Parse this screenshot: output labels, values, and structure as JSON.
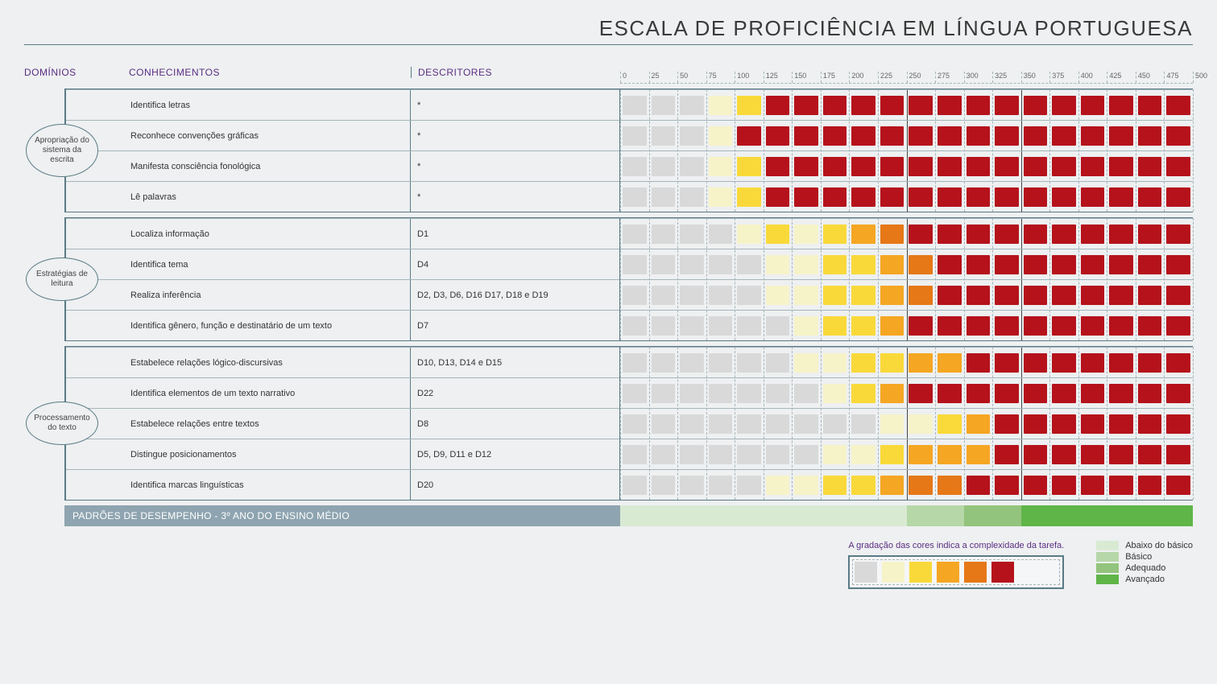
{
  "title": "ESCALA DE PROFICIÊNCIA EM LÍNGUA PORTUGUESA",
  "headers": {
    "domains": "DOMÍNIOS",
    "knowledge": "CONHECIMENTOS",
    "descriptors": "DESCRITORES"
  },
  "scale": {
    "min": 0,
    "max": 500,
    "step": 25
  },
  "colors": {
    "c0": "#d9d9d9",
    "c1": "#f7f3c8",
    "c2": "#f9d93a",
    "c3": "#f5a623",
    "c4": "#e67817",
    "c5": "#b5121b"
  },
  "solid_lines_at": [
    250,
    350
  ],
  "domains": [
    {
      "label": "Apropriação do sistema da escrita",
      "rows": [
        {
          "k": "Identifica letras",
          "d": "*",
          "cells": [
            0,
            0,
            0,
            1,
            2,
            5,
            5,
            5,
            5,
            5,
            5,
            5,
            5,
            5,
            5,
            5,
            5,
            5,
            5,
            5
          ]
        },
        {
          "k": "Reconhece convenções gráficas",
          "d": "*",
          "cells": [
            0,
            0,
            0,
            1,
            5,
            5,
            5,
            5,
            5,
            5,
            5,
            5,
            5,
            5,
            5,
            5,
            5,
            5,
            5,
            5
          ]
        },
        {
          "k": "Manifesta consciência fonológica",
          "d": "*",
          "cells": [
            0,
            0,
            0,
            1,
            2,
            5,
            5,
            5,
            5,
            5,
            5,
            5,
            5,
            5,
            5,
            5,
            5,
            5,
            5,
            5
          ]
        },
        {
          "k": "Lê palavras",
          "d": "*",
          "cells": [
            0,
            0,
            0,
            1,
            2,
            5,
            5,
            5,
            5,
            5,
            5,
            5,
            5,
            5,
            5,
            5,
            5,
            5,
            5,
            5
          ]
        }
      ]
    },
    {
      "label": "Estratégias de leitura",
      "rows": [
        {
          "k": "Localiza informação",
          "d": "D1",
          "cells": [
            0,
            0,
            0,
            0,
            1,
            2,
            1,
            2,
            3,
            4,
            5,
            5,
            5,
            5,
            5,
            5,
            5,
            5,
            5,
            5
          ]
        },
        {
          "k": "Identifica tema",
          "d": "D4",
          "cells": [
            0,
            0,
            0,
            0,
            0,
            1,
            1,
            2,
            2,
            3,
            4,
            5,
            5,
            5,
            5,
            5,
            5,
            5,
            5,
            5
          ]
        },
        {
          "k": "Realiza inferência",
          "d": "D2, D3, D6, D16 D17, D18 e D19",
          "cells": [
            0,
            0,
            0,
            0,
            0,
            1,
            1,
            2,
            2,
            3,
            4,
            5,
            5,
            5,
            5,
            5,
            5,
            5,
            5,
            5
          ]
        },
        {
          "k": "Identifica gênero, função e destinatário de um texto",
          "d": "D7",
          "cells": [
            0,
            0,
            0,
            0,
            0,
            0,
            1,
            2,
            2,
            3,
            5,
            5,
            5,
            5,
            5,
            5,
            5,
            5,
            5,
            5
          ]
        }
      ]
    },
    {
      "label": "Processamento do texto",
      "rows": [
        {
          "k": "Estabelece relações lógico-discursivas",
          "d": "D10, D13, D14 e D15",
          "cells": [
            0,
            0,
            0,
            0,
            0,
            0,
            1,
            1,
            2,
            2,
            3,
            3,
            5,
            5,
            5,
            5,
            5,
            5,
            5,
            5
          ]
        },
        {
          "k": "Identifica elementos de um texto narrativo",
          "d": "D22",
          "cells": [
            0,
            0,
            0,
            0,
            0,
            0,
            0,
            1,
            2,
            3,
            5,
            5,
            5,
            5,
            5,
            5,
            5,
            5,
            5,
            5
          ]
        },
        {
          "k": "Estabelece relações entre textos",
          "d": "D8",
          "cells": [
            0,
            0,
            0,
            0,
            0,
            0,
            0,
            0,
            0,
            1,
            1,
            2,
            3,
            5,
            5,
            5,
            5,
            5,
            5,
            5
          ]
        },
        {
          "k": "Distingue posicionamentos",
          "d": "D5, D9, D11 e D12",
          "cells": [
            0,
            0,
            0,
            0,
            0,
            0,
            0,
            1,
            1,
            2,
            3,
            3,
            3,
            5,
            5,
            5,
            5,
            5,
            5,
            5
          ]
        },
        {
          "k": "Identifica marcas linguísticas",
          "d": "D20",
          "cells": [
            0,
            0,
            0,
            0,
            0,
            1,
            1,
            2,
            2,
            3,
            4,
            4,
            5,
            5,
            5,
            5,
            5,
            5,
            5,
            5
          ]
        }
      ]
    }
  ],
  "footer_label": "PADRÕES DE DESEMPENHO - 3º ANO DO ENSINO MÉDIO",
  "performance": {
    "segments": [
      {
        "to": 250,
        "color": "#d9ead3"
      },
      {
        "to": 300,
        "color": "#b6d7a8"
      },
      {
        "to": 350,
        "color": "#93c47d"
      },
      {
        "to": 500,
        "color": "#5fb547"
      }
    ],
    "legend": [
      {
        "label": "Abaixo do básico",
        "color": "#d9ead3"
      },
      {
        "label": "Básico",
        "color": "#b6d7a8"
      },
      {
        "label": "Adequado",
        "color": "#93c47d"
      },
      {
        "label": "Avançado",
        "color": "#5fb547"
      }
    ]
  },
  "gradation_text": "A gradação das cores indica a complexidade da tarefa.",
  "gradation_cells": [
    "c0",
    "c1",
    "c2",
    "c3",
    "c4",
    "c5"
  ]
}
